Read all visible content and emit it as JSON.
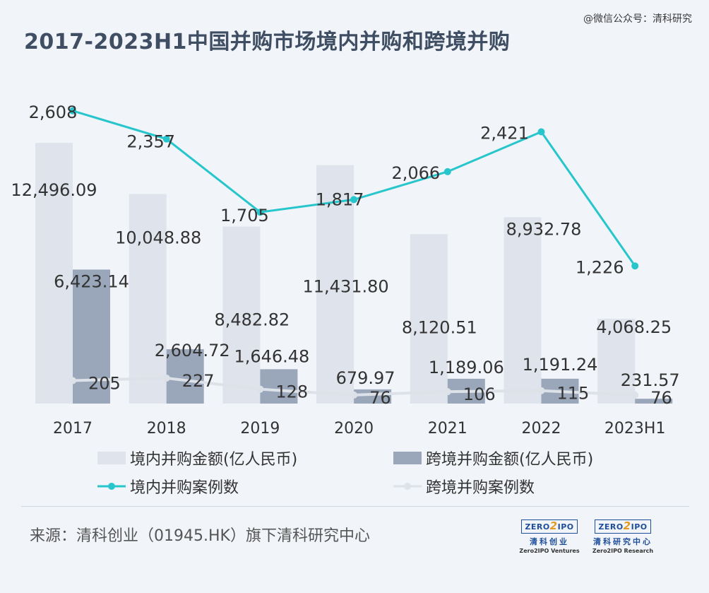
{
  "watermark": "@微信公众号：清科研究",
  "title": "2017-2023H1中国并购市场境内并购和跨境并购",
  "source": "来源：清科创业（01945.HK）旗下清科研究中心",
  "logos": [
    {
      "box_a": "ZERO",
      "box_b": "2",
      "box_c": "IPO",
      "cn": "清科创业",
      "en": "Zero2IPO Ventures"
    },
    {
      "box_a": "ZERO",
      "box_b": "2",
      "box_c": "IPO",
      "cn": "清科研究中心",
      "en": "Zero2IPO Research"
    }
  ],
  "chart_data": {
    "type": "bar",
    "categories": [
      "2017",
      "2018",
      "2019",
      "2020",
      "2021",
      "2022",
      "2023H1"
    ],
    "series": [
      {
        "name": "境内并购金额(亿人民币)",
        "kind": "bar",
        "color": "#dfe3ec",
        "values": [
          12496.09,
          10048.88,
          8482.82,
          11431.8,
          8120.51,
          8932.78,
          4068.25
        ],
        "labels": [
          "12,496.09",
          "10,048.88",
          "8,482.82",
          "11,431.80",
          "8,120.51",
          "8,932.78",
          "4,068.25"
        ]
      },
      {
        "name": "跨境并购金额(亿人民币)",
        "kind": "bar",
        "color": "#9aa7ba",
        "values": [
          6423.14,
          2604.72,
          1646.48,
          679.97,
          1189.06,
          1191.24,
          231.57
        ],
        "labels": [
          "6,423.14",
          "2,604.72",
          "1,646.48",
          "679.97",
          "1,189.06",
          "1,191.24",
          "231.57"
        ]
      },
      {
        "name": "境内并购案例数",
        "kind": "line",
        "color": "#26c6cc",
        "values": [
          2608,
          2357,
          1705,
          1817,
          2066,
          2421,
          1226
        ],
        "labels": [
          "2,608",
          "2,357",
          "1,705",
          "1,817",
          "2,066",
          "2,421",
          "1,226"
        ]
      },
      {
        "name": "跨境并购案例数",
        "kind": "line",
        "color": "#dde1e8",
        "values": [
          205,
          227,
          128,
          76,
          106,
          115,
          76
        ],
        "labels": [
          "205",
          "227",
          "128",
          "76",
          "106",
          "115",
          "76"
        ]
      }
    ]
  }
}
